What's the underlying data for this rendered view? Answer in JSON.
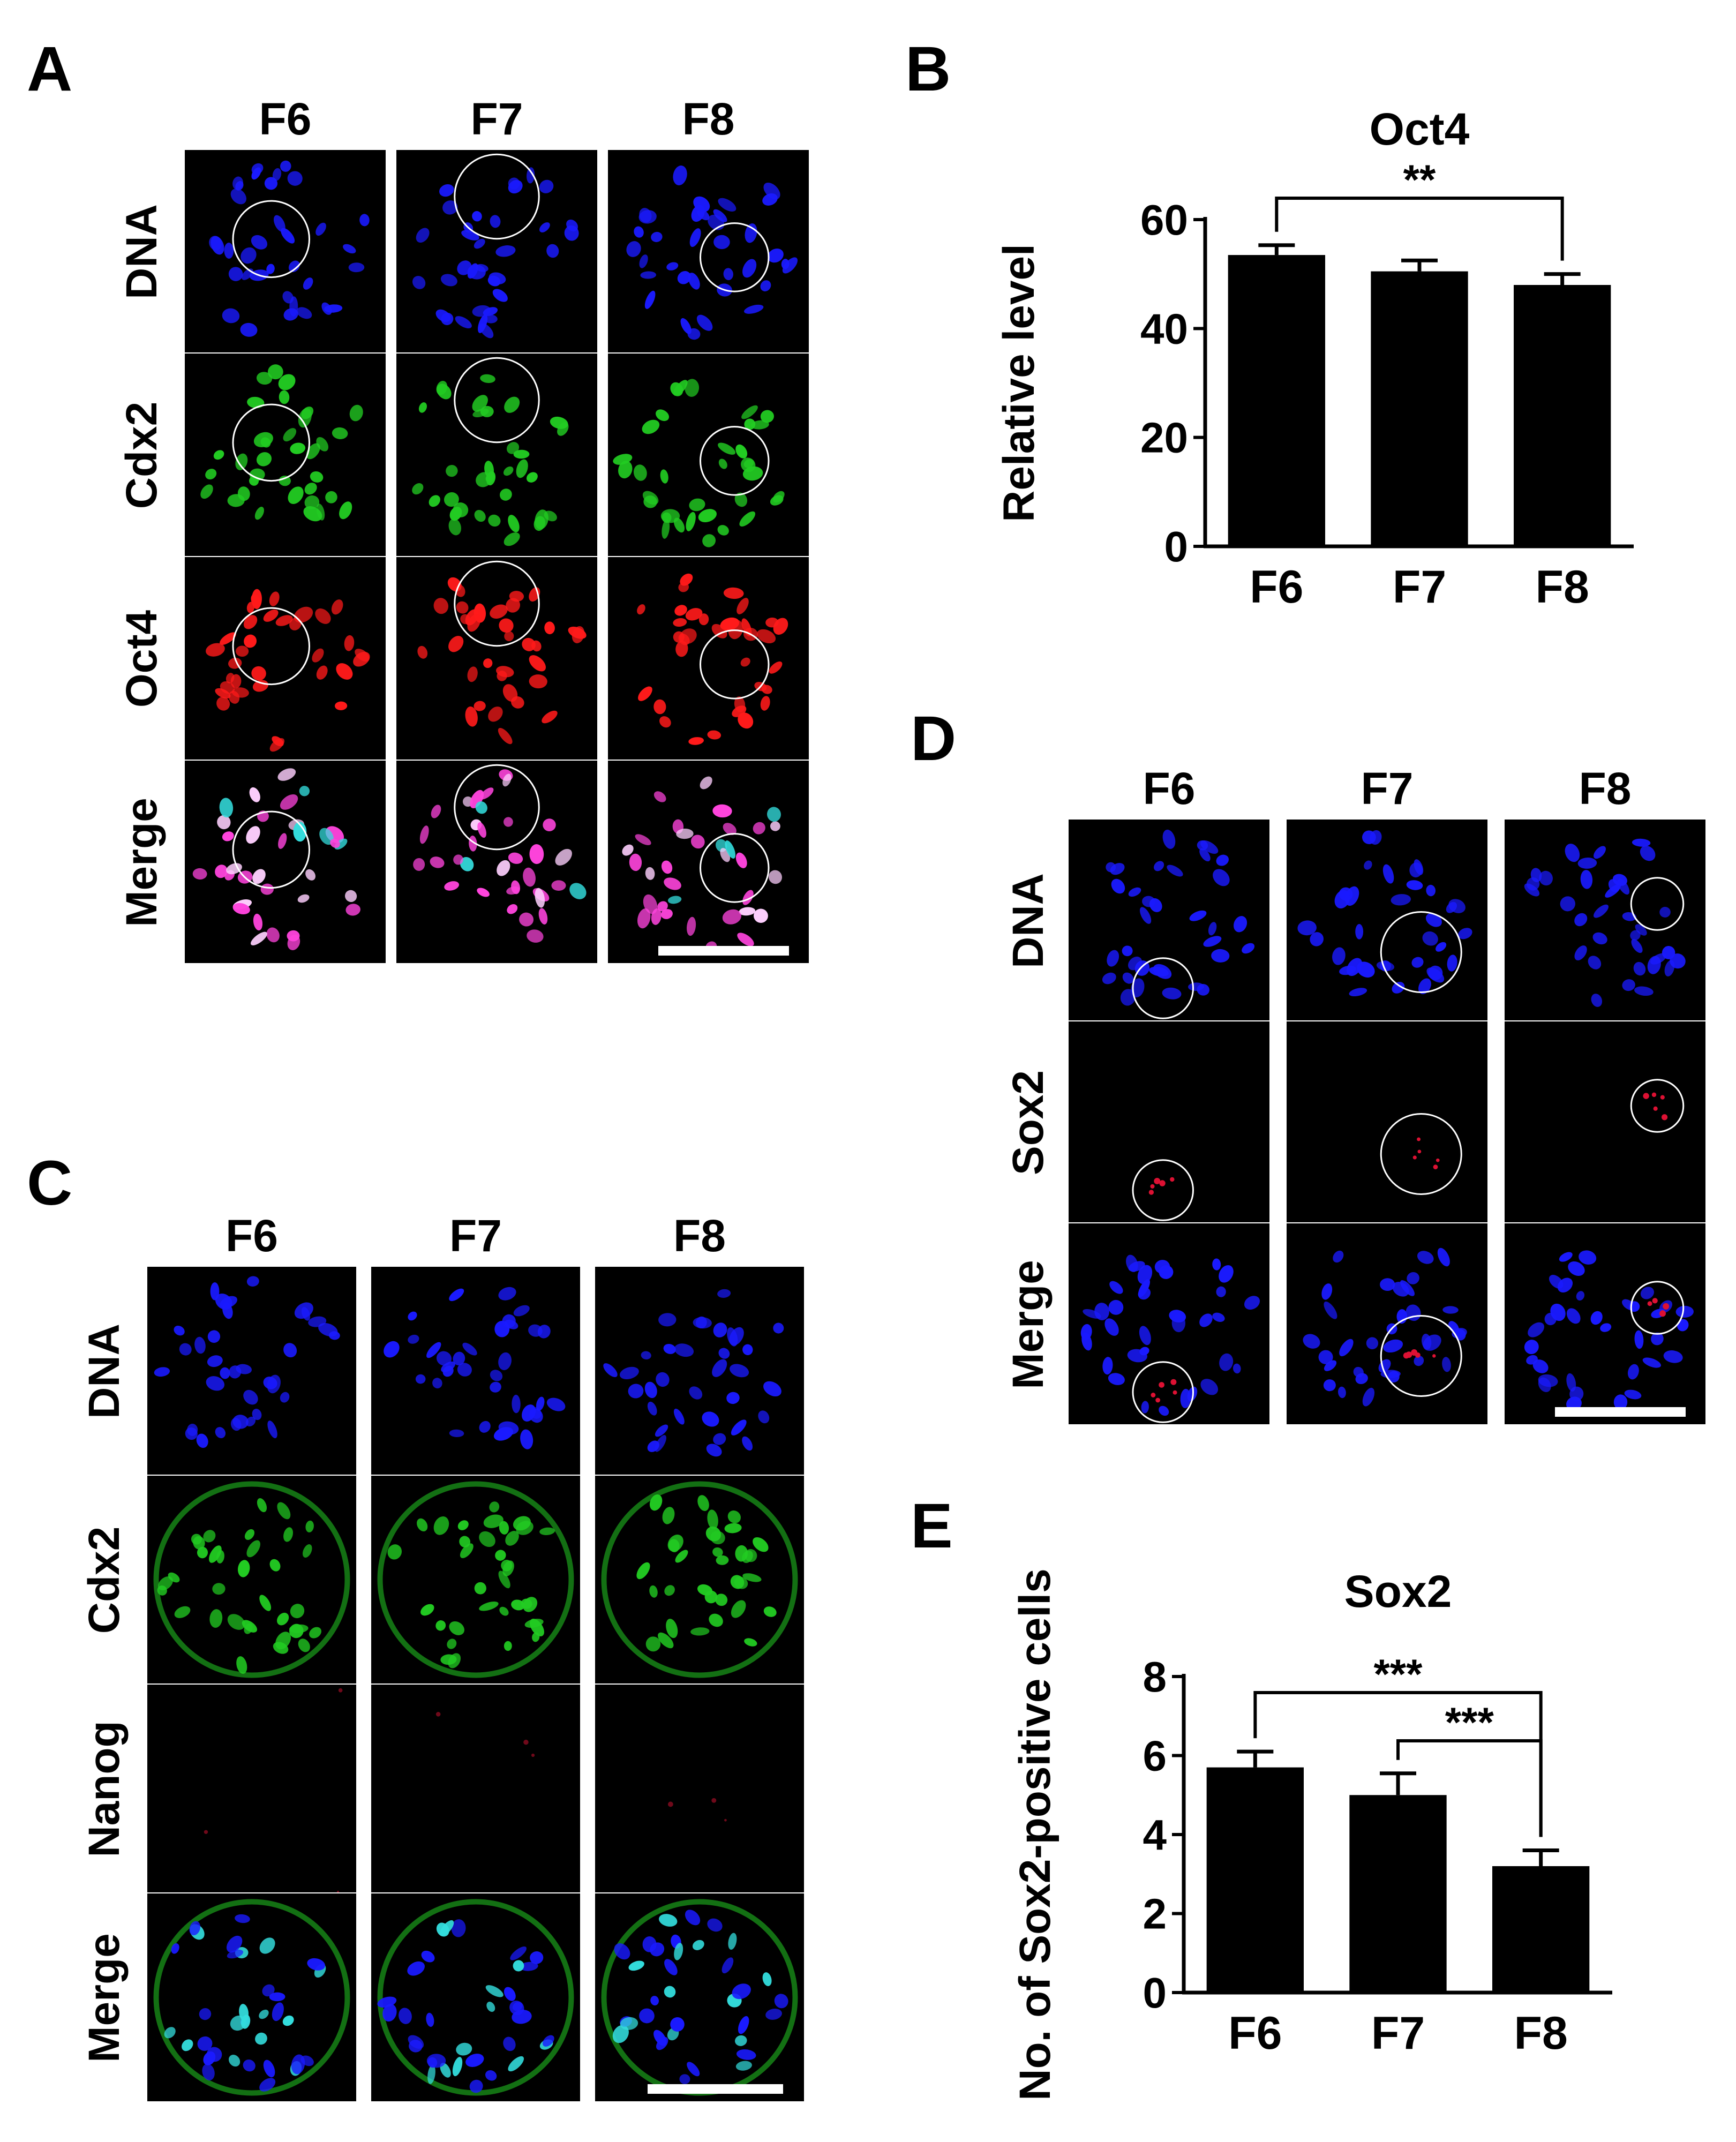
{
  "panels": {
    "A": {
      "letter": "A",
      "columns": [
        "F6",
        "F7",
        "F8"
      ],
      "rows": [
        {
          "label": "DNA",
          "channel": "dna"
        },
        {
          "label": "Cdx2",
          "channel": "cdx2"
        },
        {
          "label": "Oct4",
          "channel": "oct4"
        },
        {
          "label": "Merge",
          "channel": "merge_a"
        }
      ]
    },
    "B": {
      "letter": "B"
    },
    "C": {
      "letter": "C",
      "columns": [
        "F6",
        "F7",
        "F8"
      ],
      "rows": [
        {
          "label": "DNA",
          "channel": "dna"
        },
        {
          "label": "Cdx2",
          "channel": "cdx2_strong"
        },
        {
          "label": "Nanog",
          "channel": "nanog"
        },
        {
          "label": "Merge",
          "channel": "merge_c"
        }
      ]
    },
    "D": {
      "letter": "D",
      "columns": [
        "F6",
        "F7",
        "F8"
      ],
      "rows": [
        {
          "label": "DNA",
          "channel": "dna"
        },
        {
          "label": "Sox2",
          "channel": "sox2"
        },
        {
          "label": "Merge",
          "channel": "merge_d"
        }
      ]
    },
    "E": {
      "letter": "E"
    }
  },
  "colors": {
    "dna": "#1a1aff",
    "cdx2": "#22cc22",
    "oct4": "#ff1a1a",
    "merge_pink": "#ff44dd",
    "merge_cyan": "#33dddd",
    "sox2": "#dd1133",
    "bar": "#000000"
  },
  "chart_data": [
    {
      "type": "bar",
      "title": "Oct4",
      "categories": [
        "F6",
        "F7",
        "F8"
      ],
      "values": [
        53.5,
        50.5,
        48.0
      ],
      "errors": [
        1.8,
        2.0,
        2.0
      ],
      "xlabel": "",
      "ylabel": "Relative level",
      "ylim": [
        0,
        60
      ],
      "yticks": [
        "0",
        "20",
        "40",
        "60"
      ],
      "significance": [
        {
          "from": "F6",
          "to": "F8",
          "label": "**"
        }
      ],
      "grid": false
    },
    {
      "type": "bar",
      "title": "Sox2",
      "categories": [
        "F6",
        "F7",
        "F8"
      ],
      "values": [
        5.7,
        5.0,
        3.2
      ],
      "errors": [
        0.4,
        0.55,
        0.4
      ],
      "xlabel": "",
      "ylabel": "No. of Sox2-positive cells",
      "ylim": [
        0,
        8
      ],
      "yticks": [
        "0",
        "2",
        "4",
        "6",
        "8"
      ],
      "significance": [
        {
          "from": "F6",
          "to": "F8",
          "label": "***"
        },
        {
          "from": "F7",
          "to": "F8",
          "label": "***"
        }
      ],
      "grid": false
    }
  ]
}
